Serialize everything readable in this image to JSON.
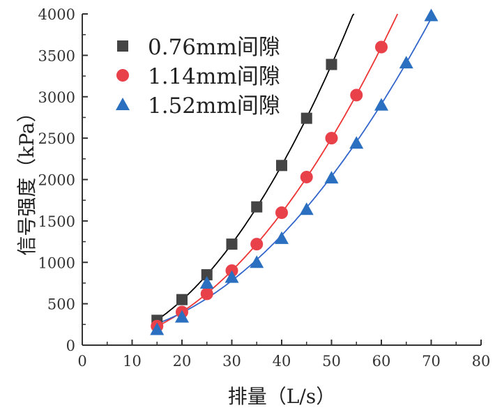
{
  "chart_data": {
    "type": "scatter",
    "title": "",
    "xlabel": "排量（L/s）",
    "ylabel": "信号强度（kPa）",
    "xlim": [
      0,
      80
    ],
    "ylim": [
      0,
      4000
    ],
    "xticks": [
      0,
      10,
      20,
      30,
      40,
      50,
      60,
      70,
      80
    ],
    "yticks": [
      0,
      500,
      1000,
      1500,
      2000,
      2500,
      3000,
      3500,
      4000
    ],
    "grid": false,
    "legend_position": "top-left",
    "series": [
      {
        "name": "0.76mm间隙",
        "marker": "square",
        "color": "#444444",
        "line_color": "#000000",
        "x": [
          15,
          20,
          25,
          30,
          35,
          40,
          45,
          50
        ],
        "y": [
          300,
          550,
          850,
          1220,
          1670,
          2170,
          2740,
          3390
        ]
      },
      {
        "name": "1.14mm间隙",
        "marker": "circle",
        "color": "#e8414a",
        "line_color": "#ee3333",
        "x": [
          15,
          20,
          25,
          30,
          35,
          40,
          45,
          50,
          55,
          60
        ],
        "y": [
          230,
          400,
          620,
          900,
          1220,
          1600,
          2030,
          2500,
          3020,
          3600
        ]
      },
      {
        "name": "1.52mm间隙",
        "marker": "triangle",
        "color": "#2a6fc0",
        "line_color": "#3366cc",
        "x": [
          15,
          20,
          25,
          30,
          35,
          40,
          45,
          50,
          55,
          60,
          65,
          70
        ],
        "y": [
          190,
          340,
          750,
          820,
          1000,
          1290,
          1640,
          2020,
          2440,
          2900,
          3410,
          3980
        ]
      }
    ]
  }
}
